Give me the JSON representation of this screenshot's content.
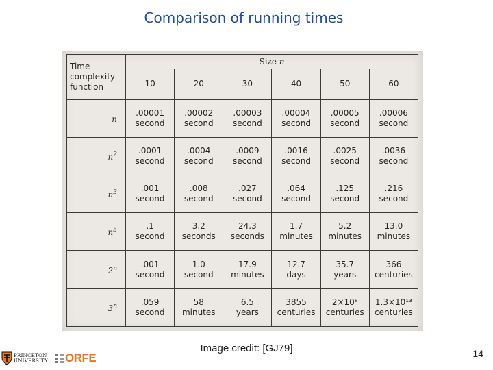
{
  "title": "Comparison of running times",
  "table": {
    "size_label": "Size",
    "size_var": "n",
    "function_header": [
      "Time",
      "complexity",
      "function"
    ],
    "sizes": [
      "10",
      "20",
      "30",
      "40",
      "50",
      "60"
    ],
    "rows": [
      {
        "base": "n",
        "exp": "",
        "cells": [
          [
            ".00001",
            "second"
          ],
          [
            ".00002",
            "second"
          ],
          [
            ".00003",
            "second"
          ],
          [
            ".00004",
            "second"
          ],
          [
            ".00005",
            "second"
          ],
          [
            ".00006",
            "second"
          ]
        ]
      },
      {
        "base": "n",
        "exp": "2",
        "cells": [
          [
            ".0001",
            "second"
          ],
          [
            ".0004",
            "second"
          ],
          [
            ".0009",
            "second"
          ],
          [
            ".0016",
            "second"
          ],
          [
            ".0025",
            "second"
          ],
          [
            ".0036",
            "second"
          ]
        ]
      },
      {
        "base": "n",
        "exp": "3",
        "cells": [
          [
            ".001",
            "second"
          ],
          [
            ".008",
            "second"
          ],
          [
            ".027",
            "second"
          ],
          [
            ".064",
            "second"
          ],
          [
            ".125",
            "second"
          ],
          [
            ".216",
            "second"
          ]
        ]
      },
      {
        "base": "n",
        "exp": "5",
        "cells": [
          [
            ".1",
            "second"
          ],
          [
            "3.2",
            "seconds"
          ],
          [
            "24.3",
            "seconds"
          ],
          [
            "1.7",
            "minutes"
          ],
          [
            "5.2",
            "minutes"
          ],
          [
            "13.0",
            "minutes"
          ]
        ]
      },
      {
        "base": "2",
        "exp": "n",
        "cells": [
          [
            ".001",
            "second"
          ],
          [
            "1.0",
            "second"
          ],
          [
            "17.9",
            "minutes"
          ],
          [
            "12.7",
            "days"
          ],
          [
            "35.7",
            "years"
          ],
          [
            "366",
            "centuries"
          ]
        ]
      },
      {
        "base": "3",
        "exp": "n",
        "cells": [
          [
            ".059",
            "second"
          ],
          [
            "58",
            "minutes"
          ],
          [
            "6.5",
            "years"
          ],
          [
            "3855",
            "centuries"
          ],
          [
            "2×10⁸",
            "centuries"
          ],
          [
            "1.3×10¹³",
            "centuries"
          ]
        ]
      }
    ]
  },
  "footer": {
    "credit": "Image credit: [GJ79]",
    "page_number": "14"
  },
  "logos": {
    "princeton_line1": "PRINCETON",
    "princeton_line2": "UNIVERSITY",
    "orfe": "ORFE",
    "princeton_color": "#e87722",
    "orfe_color": "#e87722",
    "title_color": "#1f4e99"
  }
}
